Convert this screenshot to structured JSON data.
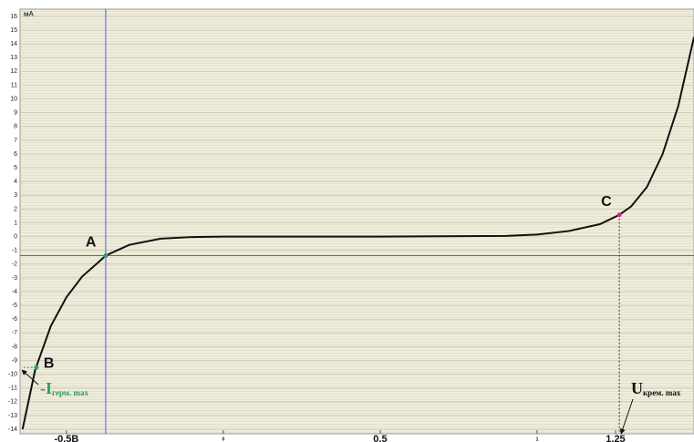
{
  "chart_data": {
    "type": "line",
    "y_label": "мА",
    "x": [
      -0.64,
      -0.6,
      -0.55,
      -0.5,
      -0.45,
      -0.4,
      -0.375,
      -0.3,
      -0.2,
      -0.1,
      0,
      0.5,
      0.9,
      1.0,
      1.1,
      1.2,
      1.262,
      1.3,
      1.35,
      1.4,
      1.45,
      1.5
    ],
    "series": [
      {
        "color": "#111111",
        "values": [
          -14,
          -9.7,
          -6.5,
          -4.4,
          -2.9,
          -1.9,
          -1.38,
          -0.6,
          -0.15,
          -0.03,
          0,
          0,
          0.05,
          0.15,
          0.4,
          0.9,
          1.58,
          2.2,
          3.6,
          6,
          9.5,
          14.5
        ]
      }
    ],
    "points": [
      {
        "label": "A",
        "x": -0.375,
        "y": -1.38,
        "color": "#2e9e5a"
      },
      {
        "label": "B",
        "x": -0.596,
        "y": -9.5,
        "color": "#2e9e5a"
      },
      {
        "label": "C",
        "x": 1.262,
        "y": 1.58,
        "color": "#e0208a"
      }
    ],
    "annotations": [
      {
        "text": "-I",
        "sub": "герм. max",
        "color": "#2e9e5a"
      },
      {
        "text": "U",
        "sub": "крем. max",
        "color": "#111111"
      }
    ],
    "crosshair_color": "#5a5ae6",
    "xlim": [
      -0.648,
      1.5
    ],
    "ylim": [
      -14.33,
      16.53
    ],
    "xticks": [
      {
        "value": -0.5,
        "label": "-0.5B"
      },
      0,
      0.5,
      1,
      1.25
    ],
    "yticks": [
      -14,
      -13,
      -12,
      -11,
      -10,
      -9,
      -8,
      -7,
      -6,
      -5,
      -4,
      -3,
      -2,
      -1,
      0,
      1,
      2,
      3,
      4,
      5,
      6,
      7,
      8,
      9,
      10,
      11,
      12,
      13,
      14,
      15,
      16
    ],
    "grid": true
  }
}
